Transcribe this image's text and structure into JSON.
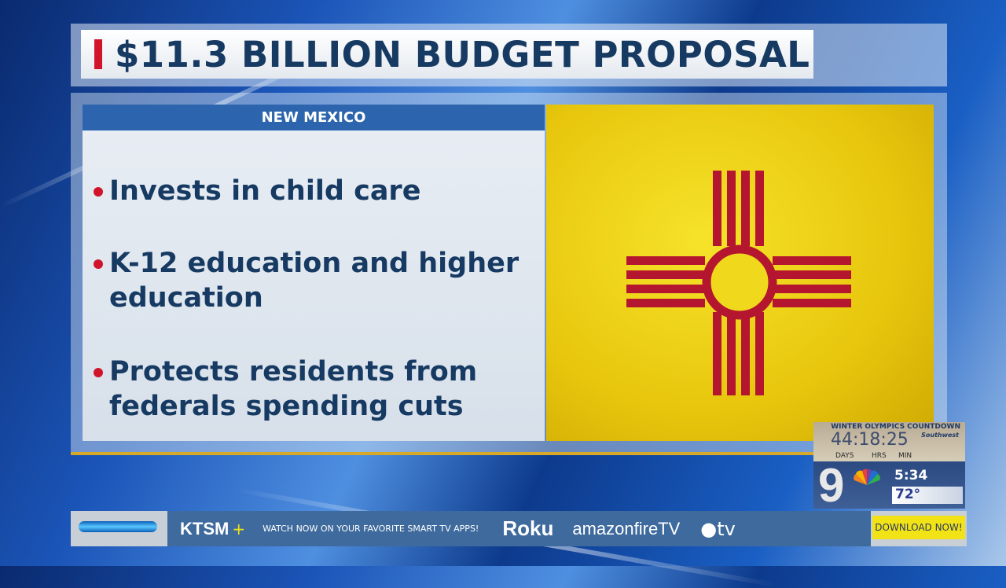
{
  "headline": "$11.3 BILLION BUDGET PROPOSAL",
  "panel": {
    "header": "NEW MEXICO",
    "bullets": [
      {
        "lines": [
          "Invests in child care"
        ]
      },
      {
        "lines": [
          "K-12 education and higher",
          "education"
        ]
      },
      {
        "lines": [
          "Protects residents from",
          "federals spending cuts"
        ]
      }
    ]
  },
  "flag": {
    "name": "New Mexico flag",
    "field_color": "#f0d81c",
    "symbol_color": "#b5162f"
  },
  "olympics": {
    "title": "WINTER OLYMPICS COUNTDOWN",
    "sponsor": "Southwest",
    "countdown": "44:18:25",
    "labels": [
      "DAYS",
      "HRS",
      "MIN"
    ]
  },
  "station": {
    "channel": "9",
    "network_icon": "nbc-peacock-icon",
    "time": "5:34",
    "temperature": "72°"
  },
  "ticker": {
    "brand": "KTSM",
    "brand_plus": "+",
    "message": "WATCH NOW ON YOUR FAVORITE SMART TV APPS!",
    "platforms": [
      "Roku",
      "amazonfireTV",
      "tv"
    ],
    "cta": "DOWNLOAD NOW!"
  },
  "colors": {
    "accent_red": "#d0142a",
    "navy": "#173a63",
    "header_blue": "#2c65ad",
    "gold": "#d6a92a"
  }
}
